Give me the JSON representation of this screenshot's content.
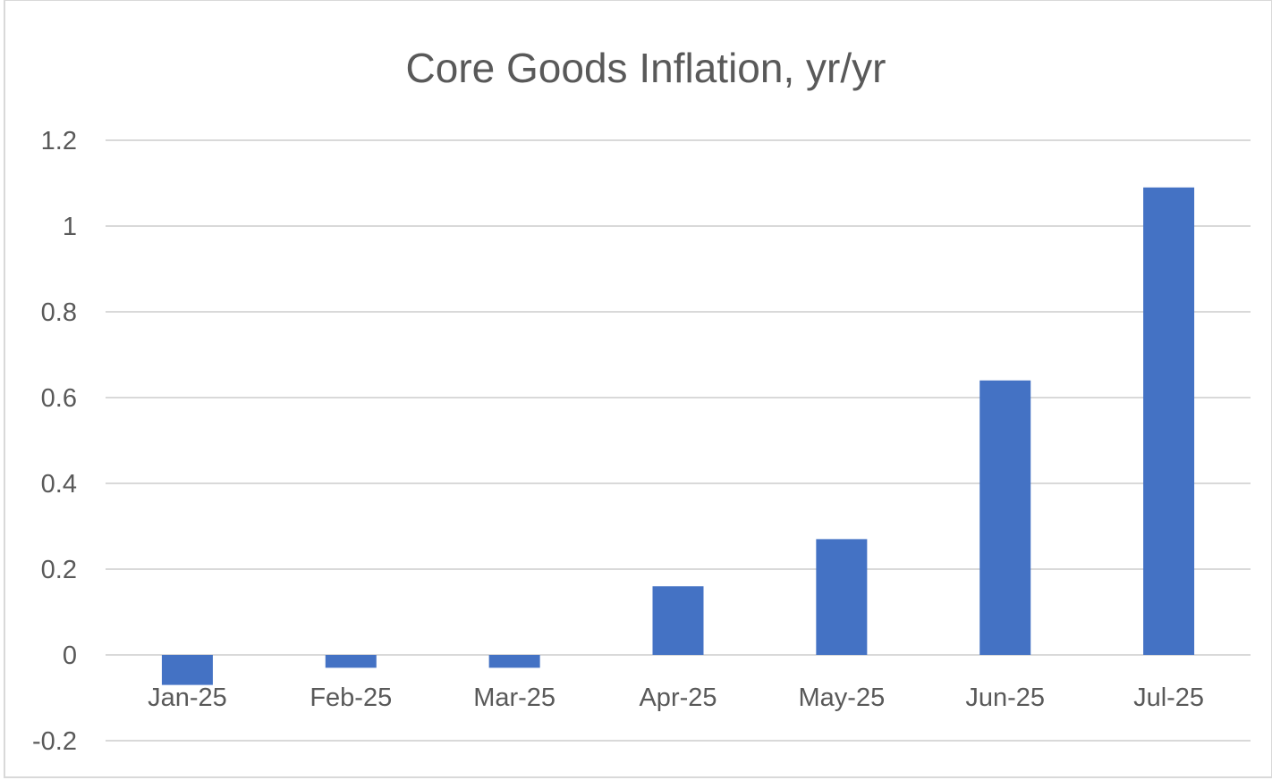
{
  "chart_data": {
    "type": "bar",
    "title": "Core Goods Inflation, yr/yr",
    "xlabel": "",
    "ylabel": "",
    "categories": [
      "Jan-25",
      "Feb-25",
      "Mar-25",
      "Apr-25",
      "May-25",
      "Jun-25",
      "Jul-25"
    ],
    "values": [
      -0.07,
      -0.03,
      -0.03,
      0.16,
      0.27,
      0.64,
      1.09
    ],
    "ylim": [
      -0.2,
      1.2
    ],
    "y_ticks": [
      {
        "value": 1.2,
        "label": "1.2"
      },
      {
        "value": 1.0,
        "label": "1"
      },
      {
        "value": 0.8,
        "label": "0.8"
      },
      {
        "value": 0.6,
        "label": "0.6"
      },
      {
        "value": 0.4,
        "label": "0.4"
      },
      {
        "value": 0.2,
        "label": "0.2"
      },
      {
        "value": 0.0,
        "label": "0"
      },
      {
        "value": -0.2,
        "label": "-0.2"
      }
    ],
    "grid": true,
    "legend": "none",
    "bar_color": "#4472C4",
    "grid_color": "#D9D9D9",
    "text_color": "#595959"
  }
}
